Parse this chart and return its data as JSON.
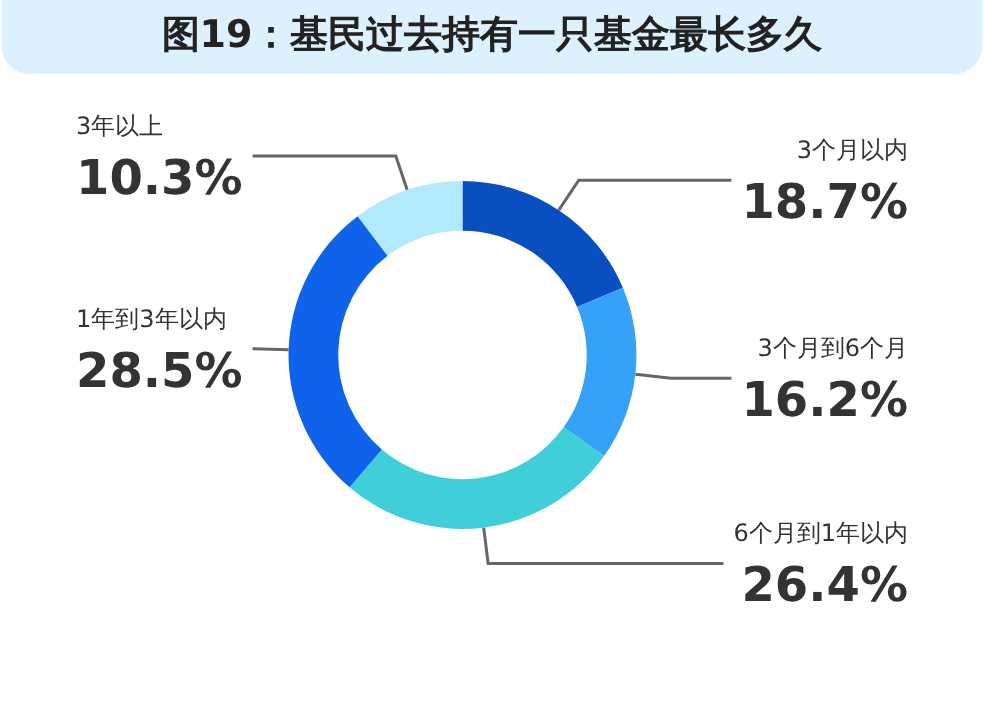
{
  "chart_data": {
    "type": "donut",
    "title": "图19：基民过去持有一只基金最长多久",
    "categories": [
      "3个月以内",
      "3个月到6个月",
      "6个月到1年以内",
      "1年到3年以内",
      "3年以上"
    ],
    "values": [
      18.7,
      16.2,
      26.4,
      28.5,
      10.3
    ],
    "colors": [
      "#0a4fc2",
      "#36a2f7",
      "#40cfd9",
      "#0f63ea",
      "#b3e9fc"
    ],
    "value_labels": [
      "18.7%",
      "16.2%",
      "26.4%",
      "28.5%",
      "10.3%"
    ],
    "data_labels": true,
    "legend": false
  }
}
